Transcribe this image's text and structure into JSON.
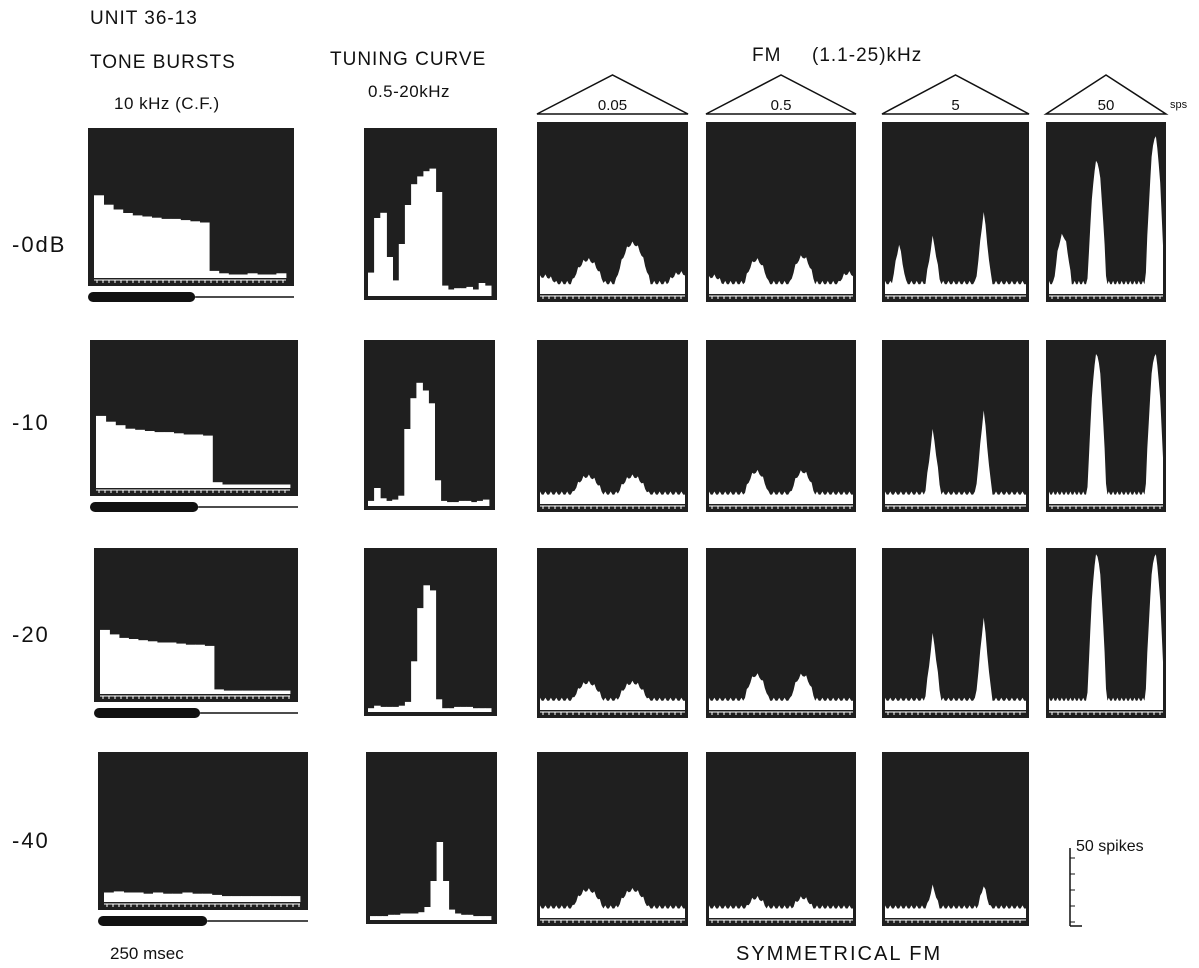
{
  "unit": "UNIT 36-13",
  "columns": {
    "tone_bursts": "TONE BURSTS",
    "tone_freq": "10 kHz (C.F.)",
    "tuning_curve": "TUNING CURVE",
    "tuning_range": "0.5-20kHz",
    "fm_title": "FM",
    "fm_range": "(1.1-25)kHz",
    "fm_rates": [
      "0.05",
      "0.5",
      "5",
      "50"
    ],
    "rate_unit": "sps"
  },
  "levels": [
    "-0dB",
    "-10",
    "-20",
    "-40"
  ],
  "time_scale": "250 msec",
  "count_scale": "50 spikes",
  "footer": "SYMMETRICAL FM",
  "colors": {
    "panel": "#1f1f1f",
    "histogram": "#ffffff",
    "ink": "#111111"
  },
  "chart_data": [
    {
      "type": "bar",
      "panel": "tone-bursts",
      "level": "-0dB",
      "x": [
        0,
        25,
        50,
        75,
        100,
        125,
        150,
        175,
        200,
        225,
        250,
        275,
        300,
        325,
        350,
        375,
        400,
        425,
        450,
        475
      ],
      "values": [
        70,
        62,
        58,
        55,
        53,
        52,
        51,
        50,
        50,
        49,
        48,
        47,
        6,
        4,
        3,
        3,
        4,
        3,
        3,
        4
      ]
    },
    {
      "type": "bar",
      "panel": "tone-bursts",
      "level": "-10",
      "x": [
        0,
        25,
        50,
        75,
        100,
        125,
        150,
        175,
        200,
        225,
        250,
        275,
        300,
        325,
        350,
        375,
        400,
        425,
        450,
        475
      ],
      "values": [
        62,
        57,
        54,
        51,
        50,
        49,
        48,
        48,
        47,
        46,
        46,
        45,
        5,
        3,
        3,
        3,
        3,
        3,
        3,
        3
      ]
    },
    {
      "type": "bar",
      "panel": "tone-bursts",
      "level": "-20",
      "x": [
        0,
        25,
        50,
        75,
        100,
        125,
        150,
        175,
        200,
        225,
        250,
        275,
        300,
        325,
        350,
        375,
        400,
        425,
        450,
        475
      ],
      "values": [
        56,
        52,
        49,
        48,
        47,
        46,
        45,
        45,
        44,
        43,
        43,
        42,
        4,
        3,
        3,
        3,
        3,
        3,
        3,
        3
      ]
    },
    {
      "type": "bar",
      "panel": "tone-bursts",
      "level": "-40",
      "x": [
        0,
        25,
        50,
        75,
        100,
        125,
        150,
        175,
        200,
        225,
        250,
        275,
        300,
        325,
        350,
        375,
        400,
        425,
        450,
        475
      ],
      "values": [
        8,
        9,
        8,
        8,
        7,
        8,
        7,
        7,
        8,
        7,
        7,
        6,
        5,
        5,
        5,
        5,
        5,
        5,
        5,
        5
      ]
    },
    {
      "type": "bar",
      "panel": "tuning-curve",
      "level": "-0dB",
      "values": [
        18,
        60,
        64,
        30,
        12,
        40,
        70,
        86,
        92,
        96,
        98,
        80,
        8,
        5,
        6,
        6,
        7,
        5,
        10,
        8
      ]
    },
    {
      "type": "bar",
      "panel": "tuning-curve",
      "level": "-10",
      "values": [
        4,
        14,
        6,
        4,
        5,
        8,
        60,
        84,
        96,
        90,
        80,
        20,
        4,
        3,
        3,
        4,
        4,
        3,
        4,
        5
      ]
    },
    {
      "type": "bar",
      "panel": "tuning-curve",
      "level": "-20",
      "values": [
        3,
        5,
        4,
        4,
        4,
        5,
        8,
        40,
        82,
        100,
        96,
        10,
        3,
        3,
        4,
        4,
        4,
        3,
        3,
        3
      ]
    },
    {
      "type": "bar",
      "panel": "tuning-curve",
      "level": "-40",
      "values": [
        3,
        3,
        3,
        4,
        4,
        5,
        5,
        5,
        6,
        10,
        30,
        60,
        30,
        8,
        5,
        4,
        4,
        3,
        3,
        3
      ]
    }
  ]
}
